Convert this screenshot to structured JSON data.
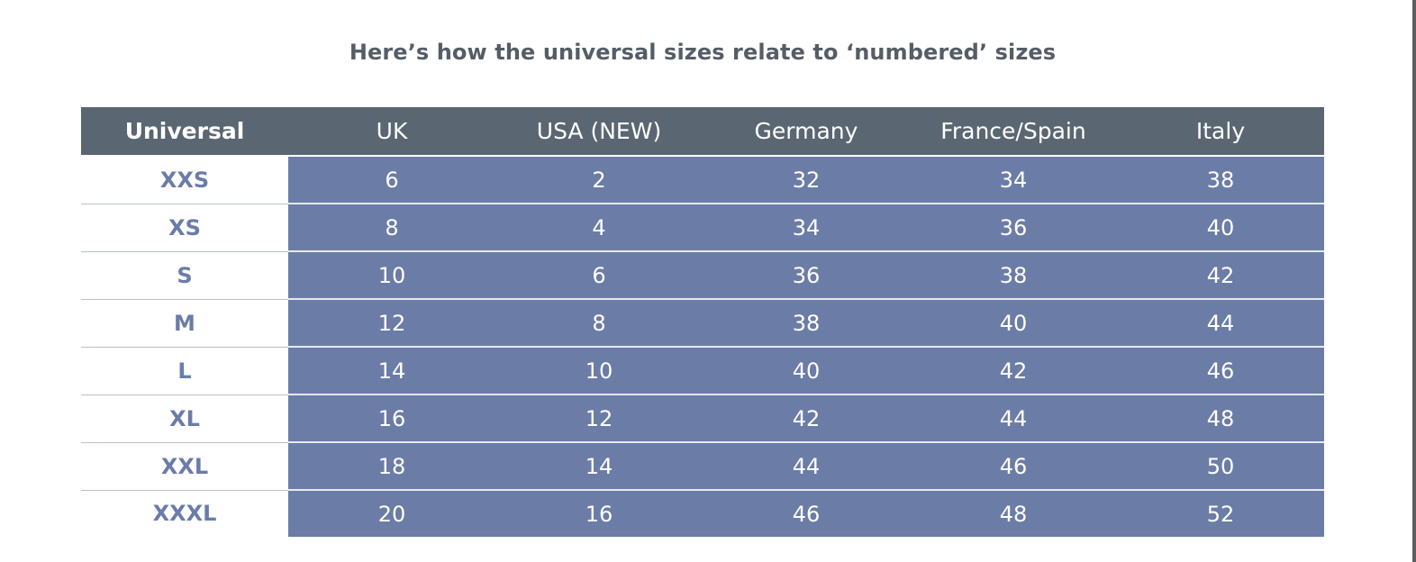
{
  "title": "Here’s how the universal sizes relate to ‘numbered’ sizes",
  "colors": {
    "header_bg": "#5a6671",
    "cell_bg": "#6b7da7",
    "universal_text": "#6a7ca9",
    "title_text": "#555d66"
  },
  "table": {
    "headers": [
      "Universal",
      "UK",
      "USA (NEW)",
      "Germany",
      "France/Spain",
      "Italy"
    ],
    "rows": [
      [
        "XXS",
        "6",
        "2",
        "32",
        "34",
        "38"
      ],
      [
        "XS",
        "8",
        "4",
        "34",
        "36",
        "40"
      ],
      [
        "S",
        "10",
        "6",
        "36",
        "38",
        "42"
      ],
      [
        "M",
        "12",
        "8",
        "38",
        "40",
        "44"
      ],
      [
        "L",
        "14",
        "10",
        "40",
        "42",
        "46"
      ],
      [
        "XL",
        "16",
        "12",
        "42",
        "44",
        "48"
      ],
      [
        "XXL",
        "18",
        "14",
        "44",
        "46",
        "50"
      ],
      [
        "XXXL",
        "20",
        "16",
        "46",
        "48",
        "52"
      ]
    ]
  }
}
